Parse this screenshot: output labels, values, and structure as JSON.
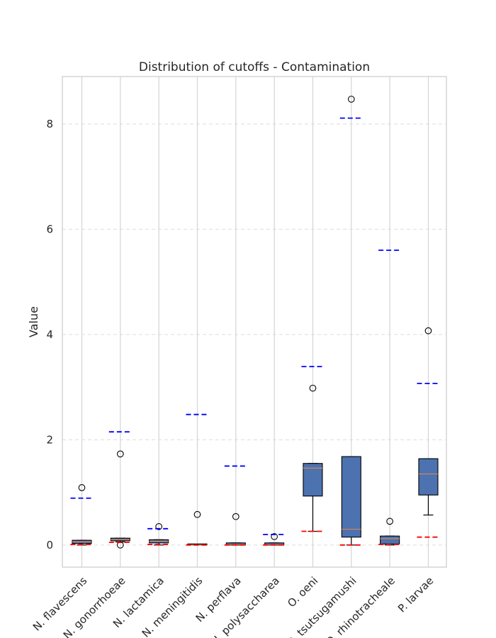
{
  "chart_data": {
    "type": "box",
    "title": "Distribution of cutoffs - Contamination",
    "xlabel": "",
    "ylabel": "Value",
    "ylim": [
      -0.42,
      8.9
    ],
    "yticks": [
      0,
      2,
      4,
      6,
      8
    ],
    "grid": {
      "x": true,
      "y": true,
      "y_style": "dashed"
    },
    "box_color": "#4c72b0",
    "median_color": "#dd8452",
    "upper_marker_color": "#0000ff",
    "lower_marker_color": "#ff0000",
    "categories": [
      "N. flavescens",
      "N. gonorrhoeae",
      "N. lactamica",
      "N. meningitidis",
      "N. perflava",
      "N. polysaccharea",
      "O. oeni",
      "O. tsutsugamushi",
      "O. rhinotracheale",
      "P. larvae"
    ],
    "boxes": [
      {
        "whislo": 0.0,
        "q1": 0.03,
        "med": 0.06,
        "q3": 0.09,
        "whishi": 0.09,
        "fliers": [
          1.09
        ],
        "upper_marker": 0.89,
        "lower_marker": 0.01
      },
      {
        "whislo": 0.06,
        "q1": 0.08,
        "med": 0.1,
        "q3": 0.13,
        "whishi": 0.13,
        "fliers": [
          1.73,
          0.0
        ],
        "upper_marker": 2.15,
        "lower_marker": 0.05
      },
      {
        "whislo": 0.0,
        "q1": 0.04,
        "med": 0.07,
        "q3": 0.1,
        "whishi": 0.1,
        "fliers": [
          0.35
        ],
        "upper_marker": 0.31,
        "lower_marker": 0.01
      },
      {
        "whislo": 0.0,
        "q1": 0.0,
        "med": 0.0,
        "q3": 0.01,
        "whishi": 0.01,
        "fliers": [
          0.58
        ],
        "upper_marker": 2.48,
        "lower_marker": 0.0
      },
      {
        "whislo": 0.0,
        "q1": 0.0,
        "med": 0.01,
        "q3": 0.04,
        "whishi": 0.04,
        "fliers": [
          0.54
        ],
        "upper_marker": 1.5,
        "lower_marker": 0.0
      },
      {
        "whislo": 0.0,
        "q1": 0.0,
        "med": 0.01,
        "q3": 0.04,
        "whishi": 0.04,
        "fliers": [
          0.16
        ],
        "upper_marker": 0.2,
        "lower_marker": 0.0
      },
      {
        "whislo": 0.26,
        "q1": 0.93,
        "med": 1.46,
        "q3": 1.55,
        "whishi": 1.55,
        "fliers": [
          2.98
        ],
        "upper_marker": 3.39,
        "lower_marker": 0.26
      },
      {
        "whislo": 0.0,
        "q1": 0.15,
        "med": 0.3,
        "q3": 1.68,
        "whishi": 1.68,
        "fliers": [
          8.47
        ],
        "upper_marker": 8.11,
        "lower_marker": 0.0
      },
      {
        "whislo": 0.0,
        "q1": 0.02,
        "med": 0.12,
        "q3": 0.17,
        "whishi": 0.17,
        "fliers": [
          0.45
        ],
        "upper_marker": 5.6,
        "lower_marker": 0.01
      },
      {
        "whislo": 0.57,
        "q1": 0.95,
        "med": 1.35,
        "q3": 1.64,
        "whishi": 1.64,
        "fliers": [
          4.07
        ],
        "upper_marker": 3.07,
        "lower_marker": 0.15
      }
    ]
  }
}
